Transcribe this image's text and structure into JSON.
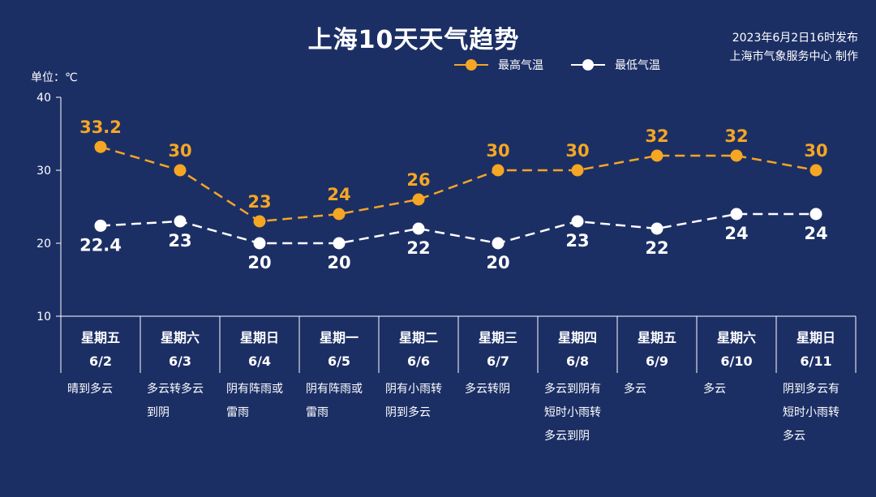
{
  "title": "上海10天天气趋势",
  "release": {
    "time": "2023年6月2日16时发布",
    "issuer": "上海市气象服务中心 制作"
  },
  "unit_label": "单位：℃",
  "colors": {
    "background": "#1c2f65",
    "high": "#f5a623",
    "low": "#ffffff",
    "axis": "#ffffff"
  },
  "chart_data": {
    "type": "line",
    "title": "上海10天天气趋势",
    "ylabel": "单位：℃",
    "ylim": [
      10,
      40
    ],
    "yticks": [
      10,
      20,
      30,
      40
    ],
    "grid": false,
    "legend": "top-right",
    "days": [
      {
        "weekday": "星期五",
        "date": "6/2",
        "weather": [
          "晴到多云"
        ]
      },
      {
        "weekday": "星期六",
        "date": "6/3",
        "weather": [
          "多云转多云",
          "到阴"
        ]
      },
      {
        "weekday": "星期日",
        "date": "6/4",
        "weather": [
          "阴有阵雨或",
          "雷雨"
        ]
      },
      {
        "weekday": "星期一",
        "date": "6/5",
        "weather": [
          "阴有阵雨或",
          "雷雨"
        ]
      },
      {
        "weekday": "星期二",
        "date": "6/6",
        "weather": [
          "阴有小雨转",
          "阴到多云"
        ]
      },
      {
        "weekday": "星期三",
        "date": "6/7",
        "weather": [
          "多云转阴"
        ]
      },
      {
        "weekday": "星期四",
        "date": "6/8",
        "weather": [
          "多云到阴有",
          "短时小雨转",
          "多云到阴"
        ]
      },
      {
        "weekday": "星期五",
        "date": "6/9",
        "weather": [
          "多云"
        ]
      },
      {
        "weekday": "星期六",
        "date": "6/10",
        "weather": [
          "多云"
        ]
      },
      {
        "weekday": "星期日",
        "date": "6/11",
        "weather": [
          "阴到多云有",
          "短时小雨转",
          "多云"
        ]
      }
    ],
    "series": [
      {
        "name": "最高气温",
        "values": [
          33.2,
          30,
          23,
          24,
          26,
          30,
          30,
          32,
          32,
          30
        ],
        "labels": [
          "33.2",
          "30",
          "23",
          "24",
          "26",
          "30",
          "30",
          "32",
          "32",
          "30"
        ]
      },
      {
        "name": "最低气温",
        "values": [
          22.4,
          23,
          20,
          20,
          22,
          20,
          23,
          22,
          24,
          24
        ],
        "labels": [
          "22.4",
          "23",
          "20",
          "20",
          "22",
          "20",
          "23",
          "22",
          "24",
          "24"
        ]
      }
    ]
  }
}
